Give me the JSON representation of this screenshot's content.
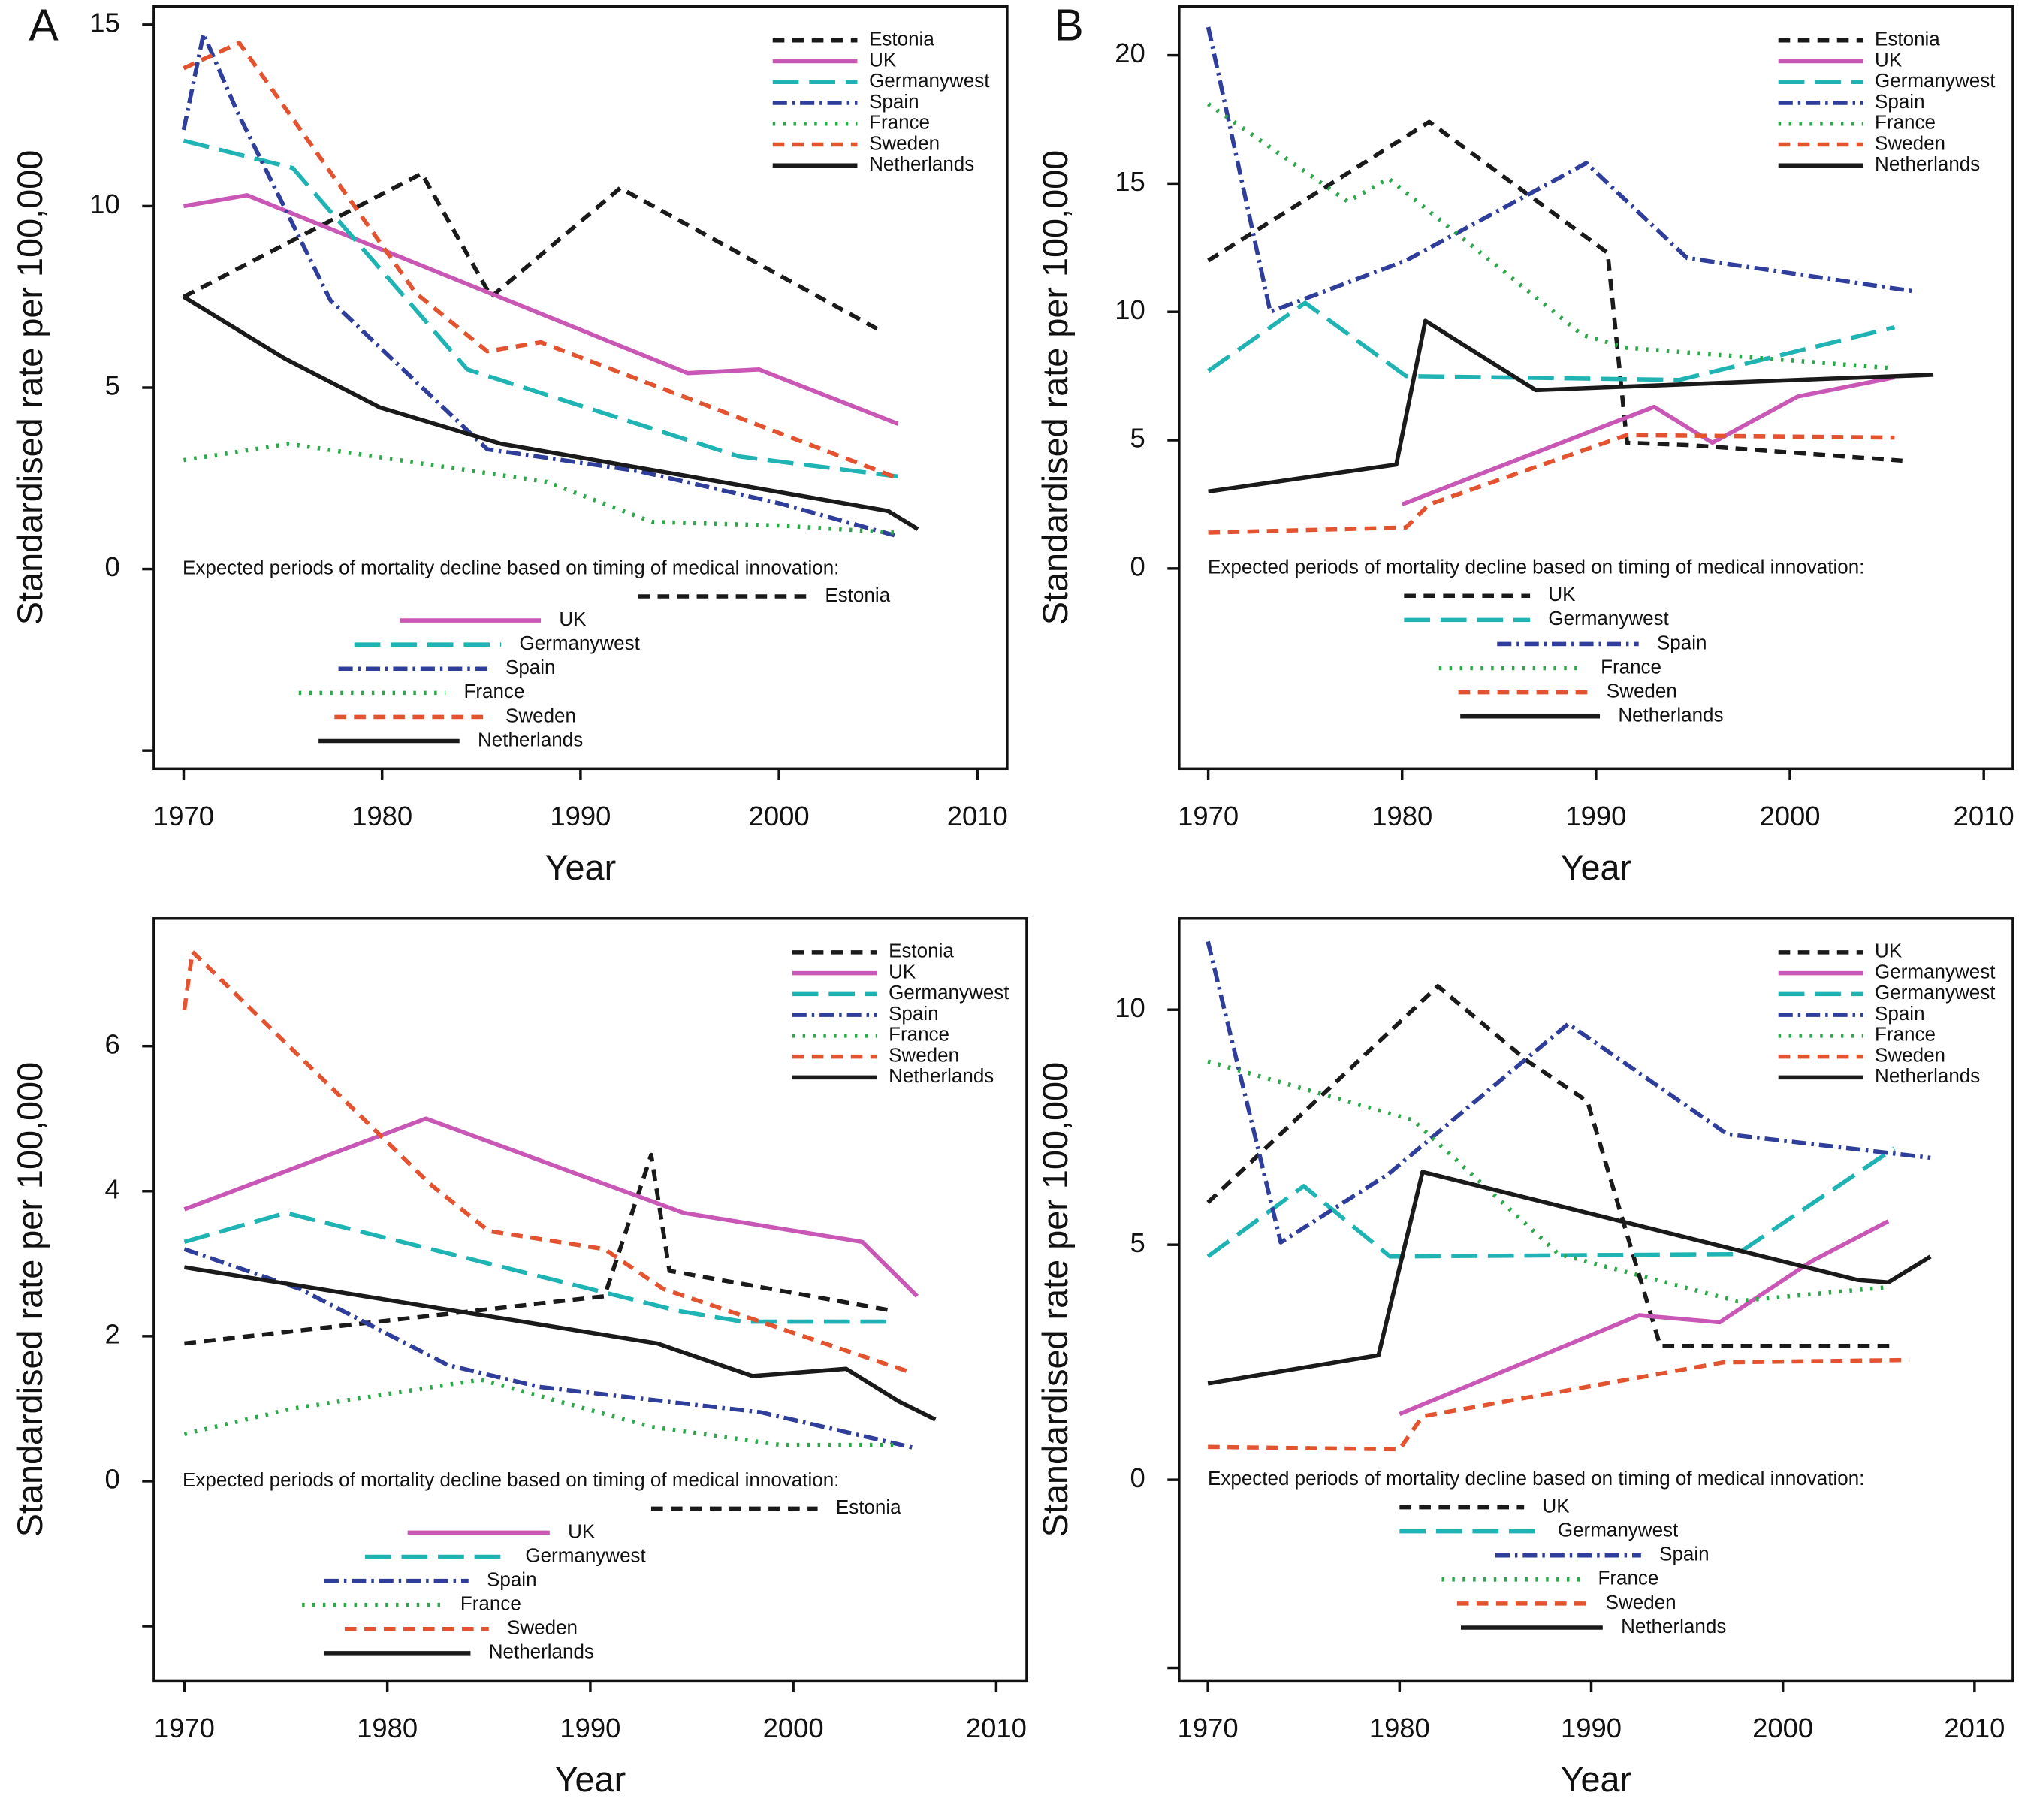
{
  "chart_data": [
    {
      "type": "line",
      "panel": "A",
      "xlabel": "Year",
      "ylabel": "Standardised rate per 100,000",
      "xlim": [
        1968.5,
        2011.5
      ],
      "ylim": [
        -5.5,
        15.5
      ],
      "xticks": [
        1970,
        1980,
        1990,
        2000,
        2010
      ],
      "yticks": [
        {
          "value": -5,
          "label": null
        },
        0,
        5,
        10,
        15
      ],
      "legend": "upper right",
      "series": [
        {
          "name": "Estonia",
          "color": "#1a1a1a",
          "dash": "dashed",
          "x": [
            1970,
            1982,
            1985.5,
            1992,
            2005
          ],
          "y": [
            7.5,
            10.9,
            7.5,
            10.5,
            6.6
          ]
        },
        {
          "name": "UK",
          "color": "#c957b5",
          "dash": "solid",
          "x": [
            1970,
            1973.2,
            1995.4,
            1999,
            2006
          ],
          "y": [
            10.0,
            10.3,
            5.4,
            5.5,
            4.0
          ]
        },
        {
          "name": "Germanywest",
          "color": "#1fb3b3",
          "dash": "longdash",
          "x": [
            1970,
            1975.5,
            1984.3,
            1998,
            2006
          ],
          "y": [
            11.8,
            11.05,
            5.5,
            3.1,
            2.55
          ]
        },
        {
          "name": "Spain",
          "color": "#2e3e9a",
          "dash": "dotdash",
          "x": [
            1970,
            1971,
            1972.7,
            1977.4,
            1985.3,
            1992.9,
            2000.1,
            2006
          ],
          "y": [
            12.1,
            14.75,
            12.6,
            7.4,
            3.3,
            2.7,
            1.8,
            0.9
          ]
        },
        {
          "name": "France",
          "color": "#2ca84a",
          "dash": "dotted",
          "x": [
            1970,
            1975.3,
            1988.3,
            1993.6,
            2000,
            2006
          ],
          "y": [
            3.0,
            3.45,
            2.4,
            1.3,
            1.2,
            1.0
          ]
        },
        {
          "name": "Sweden",
          "color": "#e4532f",
          "dash": "dashed",
          "x": [
            1970,
            1972.8,
            1981.7,
            1985.3,
            1988,
            2006
          ],
          "y": [
            13.8,
            14.5,
            7.6,
            6.0,
            6.25,
            2.5
          ]
        },
        {
          "name": "Netherlands",
          "color": "#1a1a1a",
          "dash": "solid",
          "x": [
            1970,
            1975.1,
            1979.9,
            1986,
            2005.5,
            2007
          ],
          "y": [
            7.5,
            5.8,
            4.45,
            3.45,
            1.6,
            1.1
          ]
        }
      ],
      "periods_title": "Expected periods of mortality decline based on timing of medical innovation:",
      "periods": [
        {
          "name": "Estonia",
          "color": "#1a1a1a",
          "dash": "dashed",
          "x": [
            1992.9,
            2001.4
          ]
        },
        {
          "name": "UK",
          "color": "#c957b5",
          "dash": "solid",
          "x": [
            1980.9,
            1988
          ]
        },
        {
          "name": "Germanywest",
          "color": "#1fb3b3",
          "dash": "longdash",
          "x": [
            1978.6,
            1986
          ]
        },
        {
          "name": "Spain",
          "color": "#2e3e9a",
          "dash": "dotdash",
          "x": [
            1977.8,
            1985.3
          ]
        },
        {
          "name": "France",
          "color": "#2ca84a",
          "dash": "dotted",
          "x": [
            1975.8,
            1983.2
          ]
        },
        {
          "name": "Sweden",
          "color": "#e4532f",
          "dash": "dashed",
          "x": [
            1977.6,
            1985.3
          ]
        },
        {
          "name": "Netherlands",
          "color": "#1a1a1a",
          "dash": "solid",
          "x": [
            1976.8,
            1983.9
          ]
        }
      ]
    },
    {
      "type": "line",
      "panel": "B",
      "xlabel": "Year",
      "ylabel": "Standardised rate per 100,000",
      "xlim": [
        1968.5,
        2011.5
      ],
      "ylim": [
        -7.8,
        21.9
      ],
      "xticks": [
        1970,
        1980,
        1990,
        2000,
        2010
      ],
      "yticks": [
        0,
        5,
        10,
        15,
        20
      ],
      "legend": "upper right",
      "series": [
        {
          "name": "Estonia",
          "color": "#1a1a1a",
          "dash": "dashed",
          "x": [
            1970,
            1981.4,
            1990.6,
            1991.6,
            1995,
            2005.8
          ],
          "y": [
            12.0,
            17.4,
            12.3,
            4.9,
            4.8,
            4.2
          ]
        },
        {
          "name": "UK",
          "color": "#c957b5",
          "dash": "solid",
          "x": [
            1980,
            1993,
            1996,
            2000.4,
            2005.4
          ],
          "y": [
            2.5,
            6.3,
            4.9,
            6.7,
            7.45
          ]
        },
        {
          "name": "Germanywest",
          "color": "#1fb3b3",
          "dash": "longdash",
          "x": [
            1970,
            1975,
            1980.2,
            1994.3,
            2005.4
          ],
          "y": [
            7.7,
            10.35,
            7.5,
            7.35,
            9.4
          ]
        },
        {
          "name": "Spain",
          "color": "#2e3e9a",
          "dash": "dotdash",
          "x": [
            1970,
            1973.2,
            1980.2,
            1989.5,
            1994.7,
            2006.4
          ],
          "y": [
            21.1,
            10.0,
            12.0,
            15.8,
            12.1,
            10.8
          ]
        },
        {
          "name": "France",
          "color": "#2ca84a",
          "dash": "dotted",
          "x": [
            1970,
            1977.2,
            1979.3,
            1989.3,
            1991.6,
            2005.4
          ],
          "y": [
            18.1,
            14.3,
            15.2,
            9.1,
            8.6,
            7.8
          ]
        },
        {
          "name": "Sweden",
          "color": "#e4532f",
          "dash": "dashed",
          "x": [
            1970,
            1980.2,
            1981.4,
            1991.6,
            2005.4
          ],
          "y": [
            1.4,
            1.6,
            2.5,
            5.2,
            5.1
          ]
        },
        {
          "name": "Netherlands",
          "color": "#1a1a1a",
          "dash": "solid",
          "x": [
            1970,
            1979.7,
            1981.2,
            1986.9,
            2000.4,
            2007.4
          ],
          "y": [
            3.0,
            4.05,
            9.65,
            6.95,
            7.35,
            7.55
          ]
        }
      ],
      "periods_title": "Expected periods of mortality decline based on timing of medical innovation:",
      "periods": [
        {
          "name": "UK",
          "color": "#1a1a1a",
          "dash": "dashed",
          "x": [
            1980.1,
            1986.6
          ]
        },
        {
          "name": "Germanywest",
          "color": "#1fb3b3",
          "dash": "longdash",
          "x": [
            1980.1,
            1986.6
          ]
        },
        {
          "name": "Spain",
          "color": "#2e3e9a",
          "dash": "dotdash",
          "x": [
            1984.9,
            1992.2
          ]
        },
        {
          "name": "France",
          "color": "#2ca84a",
          "dash": "dotted",
          "x": [
            1981.9,
            1989.3
          ]
        },
        {
          "name": "Sweden",
          "color": "#e4532f",
          "dash": "dashed",
          "x": [
            1982.9,
            1989.6
          ]
        },
        {
          "name": "Netherlands",
          "color": "#1a1a1a",
          "dash": "solid",
          "x": [
            1983,
            1990.2
          ]
        }
      ]
    },
    {
      "type": "line",
      "xlabel": "Year",
      "ylabel": "Standardised rate per 100,000",
      "xlim": [
        1968.5,
        2011.5
      ],
      "ylim": [
        -2.75,
        7.76
      ],
      "xticks": [
        1970,
        1980,
        1990,
        2000,
        2010
      ],
      "yticks": [
        {
          "value": -2,
          "label": null
        },
        0,
        2,
        4,
        6
      ],
      "legend": "upper right",
      "series": [
        {
          "name": "Estonia",
          "color": "#1a1a1a",
          "dash": "dashed",
          "x": [
            1970,
            1990.7,
            1993,
            1993.9,
            2004.9
          ],
          "y": [
            1.9,
            2.55,
            4.5,
            2.9,
            2.35
          ]
        },
        {
          "name": "UK",
          "color": "#c957b5",
          "dash": "solid",
          "x": [
            1970,
            1981.9,
            1994.6,
            2003.4,
            2006.1
          ],
          "y": [
            3.75,
            5.0,
            3.7,
            3.3,
            2.55
          ]
        },
        {
          "name": "Germanywest",
          "color": "#1fb3b3",
          "dash": "longdash",
          "x": [
            1970,
            1975,
            1994.3,
            1997.5,
            2005
          ],
          "y": [
            3.3,
            3.7,
            2.35,
            2.2,
            2.2
          ]
        },
        {
          "name": "Spain",
          "color": "#2e3e9a",
          "dash": "dotdash",
          "x": [
            1970,
            1975.7,
            1983,
            1987.5,
            1998.4,
            2006.1
          ],
          "y": [
            3.2,
            2.65,
            1.6,
            1.3,
            0.95,
            0.45
          ]
        },
        {
          "name": "France",
          "color": "#2ca84a",
          "dash": "dotted",
          "x": [
            1970,
            1975.3,
            1984.6,
            1993,
            1999.4,
            2005.2
          ],
          "y": [
            0.65,
            1.0,
            1.4,
            0.75,
            0.5,
            0.5
          ]
        },
        {
          "name": "Sweden",
          "color": "#e4532f",
          "dash": "dashed",
          "x": [
            1970,
            1970.4,
            1982.1,
            1985,
            1990.7,
            1993.6,
            2005.8
          ],
          "y": [
            6.5,
            7.3,
            4.1,
            3.45,
            3.2,
            2.65,
            1.5
          ]
        },
        {
          "name": "Netherlands",
          "color": "#1a1a1a",
          "dash": "solid",
          "x": [
            1970,
            1993.3,
            1998,
            2002.6,
            2005.2,
            2007
          ],
          "y": [
            2.95,
            1.9,
            1.45,
            1.55,
            1.1,
            0.85
          ]
        }
      ],
      "periods_title": "Expected periods of mortality decline based on timing of medical innovation:",
      "periods": [
        {
          "name": "Estonia",
          "color": "#1a1a1a",
          "dash": "dashed",
          "x": [
            1993,
            2001.2
          ]
        },
        {
          "name": "UK",
          "color": "#c957b5",
          "dash": "solid",
          "x": [
            1981,
            1988
          ]
        },
        {
          "name": "Germanywest",
          "color": "#1fb3b3",
          "dash": "longdash",
          "x": [
            1978.9,
            1985.9
          ]
        },
        {
          "name": "Spain",
          "color": "#2e3e9a",
          "dash": "dotdash",
          "x": [
            1976.9,
            1984
          ]
        },
        {
          "name": "France",
          "color": "#2ca84a",
          "dash": "dotted",
          "x": [
            1975.8,
            1982.7
          ]
        },
        {
          "name": "Sweden",
          "color": "#e4532f",
          "dash": "dashed",
          "x": [
            1977.9,
            1985
          ]
        },
        {
          "name": "Netherlands",
          "color": "#1a1a1a",
          "dash": "solid",
          "x": [
            1976.9,
            1984.1
          ]
        }
      ]
    },
    {
      "type": "line",
      "xlabel": "Year",
      "ylabel": "Standardised rate per 100,000",
      "xlim": [
        1968.5,
        2012
      ],
      "ylim": [
        -4.27,
        11.94
      ],
      "xticks": [
        1970,
        1980,
        1990,
        2000,
        2010
      ],
      "yticks": [
        {
          "value": -4,
          "label": null
        },
        0,
        5,
        10
      ],
      "legend": "upper right",
      "series": [
        {
          "name": "UK",
          "color": "#1a1a1a",
          "dash": "dashed",
          "x": [
            1970,
            1982,
            1986.7,
            1989.8,
            1993.6,
            2005.8
          ],
          "y": [
            5.9,
            10.5,
            8.9,
            8.05,
            2.85,
            2.85
          ]
        },
        {
          "name": "Germanywest",
          "color": "#c957b5",
          "dash": "solid",
          "x": [
            1980,
            1992.5,
            1996.7,
            2001.5,
            2005.5
          ],
          "y": [
            1.4,
            3.5,
            3.35,
            4.65,
            5.5
          ]
        },
        {
          "name": "Germanywest",
          "color": "#1fb3b3",
          "dash": "longdash",
          "x": [
            1970,
            1975,
            1979.5,
            1997.6,
            2005.8
          ],
          "y": [
            4.75,
            6.25,
            4.75,
            4.8,
            7.05
          ]
        },
        {
          "name": "Spain",
          "color": "#2e3e9a",
          "dash": "dotdash",
          "x": [
            1970,
            1973.8,
            1979.4,
            1988.8,
            1997.1,
            2007.7
          ],
          "y": [
            11.45,
            5.05,
            6.5,
            9.7,
            7.35,
            6.85
          ]
        },
        {
          "name": "France",
          "color": "#2ca84a",
          "dash": "dotted",
          "x": [
            1970,
            1980.7,
            1988.3,
            1997.6,
            2005.5
          ],
          "y": [
            8.9,
            7.65,
            4.8,
            3.8,
            4.1
          ]
        },
        {
          "name": "Sweden",
          "color": "#e4532f",
          "dash": "dashed",
          "x": [
            1970,
            1980,
            1981.2,
            1996.9,
            2006.6
          ],
          "y": [
            0.7,
            0.65,
            1.35,
            2.5,
            2.55
          ]
        },
        {
          "name": "Netherlands",
          "color": "#1a1a1a",
          "dash": "solid",
          "x": [
            1970,
            1978.9,
            1981.2,
            2003.9,
            2005.5,
            2007.7
          ],
          "y": [
            2.05,
            2.65,
            6.55,
            4.25,
            4.2,
            4.75
          ]
        }
      ],
      "periods_title": "Expected periods of mortality decline based on timing of medical innovation:",
      "periods": [
        {
          "name": "UK",
          "color": "#1a1a1a",
          "dash": "dashed",
          "x": [
            1980,
            1986.5
          ]
        },
        {
          "name": "Germanywest",
          "color": "#1fb3b3",
          "dash": "longdash",
          "x": [
            1980,
            1987.3
          ]
        },
        {
          "name": "Spain",
          "color": "#2e3e9a",
          "dash": "dotdash",
          "x": [
            1985,
            1992.6
          ]
        },
        {
          "name": "France",
          "color": "#2ca84a",
          "dash": "dotted",
          "x": [
            1982.2,
            1989.4
          ]
        },
        {
          "name": "Sweden",
          "color": "#e4532f",
          "dash": "dashed",
          "x": [
            1983,
            1989.8
          ]
        },
        {
          "name": "Netherlands",
          "color": "#1a1a1a",
          "dash": "solid",
          "x": [
            1983.2,
            1990.6
          ]
        }
      ]
    }
  ]
}
